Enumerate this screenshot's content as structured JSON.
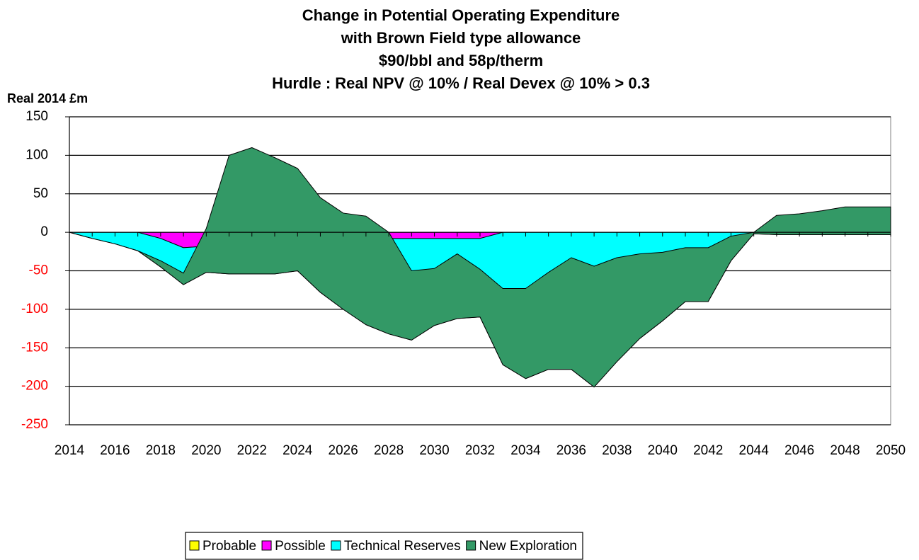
{
  "chart_data": {
    "type": "stacked_area",
    "title": [
      "Change in Potential Operating Expenditure",
      "with Brown Field type allowance",
      "$90/bbl and 58p/therm",
      "Hurdle : Real NPV @ 10% / Real Devex @ 10% > 0.3"
    ],
    "y_label": "Real 2014 £m",
    "x": [
      2014,
      2015,
      2016,
      2017,
      2018,
      2019,
      2020,
      2021,
      2022,
      2023,
      2024,
      2025,
      2026,
      2027,
      2028,
      2029,
      2030,
      2031,
      2032,
      2033,
      2034,
      2035,
      2036,
      2037,
      2038,
      2039,
      2040,
      2041,
      2042,
      2043,
      2044,
      2045,
      2046,
      2047,
      2048,
      2049,
      2050
    ],
    "xlim": [
      2014,
      2050
    ],
    "xticks": [
      2014,
      2016,
      2018,
      2020,
      2022,
      2024,
      2026,
      2028,
      2030,
      2032,
      2034,
      2036,
      2038,
      2040,
      2042,
      2044,
      2046,
      2048,
      2050
    ],
    "ylim": [
      -250,
      150
    ],
    "yticks": [
      150,
      100,
      50,
      0,
      -50,
      -100,
      -150,
      -200,
      -250
    ],
    "negative_tick_color": "#ff0000",
    "grid": true,
    "legend": "bottom",
    "series": [
      {
        "name": "Probable",
        "color": "#ffff00",
        "values": [
          0,
          0,
          0,
          0,
          0,
          0,
          0,
          0,
          0,
          0,
          0,
          0,
          0,
          0,
          0,
          0,
          0,
          0,
          0,
          0,
          0,
          0,
          0,
          0,
          0,
          0,
          0,
          0,
          0,
          0,
          0,
          0,
          0,
          0,
          0,
          0,
          0
        ]
      },
      {
        "name": "Possible",
        "color": "#ff00ff",
        "values": [
          0,
          0,
          0,
          0,
          -8,
          -20,
          -18,
          -8,
          -8,
          -8,
          -8,
          -8,
          -8,
          -8,
          -8,
          -8,
          -8,
          -8,
          -8,
          0,
          0,
          0,
          0,
          0,
          0,
          0,
          0,
          0,
          0,
          0,
          0,
          0,
          0,
          0,
          0,
          0,
          0
        ]
      },
      {
        "name": "Technical Reserves",
        "color": "#00ffff",
        "values": [
          0,
          -8,
          -15,
          -24,
          -37,
          -48,
          -34,
          -46,
          -46,
          -46,
          -42,
          -70,
          -92,
          -112,
          -124,
          -132,
          -113,
          -104,
          -102,
          -172,
          -190,
          -178,
          -178,
          -201,
          -168,
          -138,
          -115,
          -90,
          -90,
          -37,
          -2,
          -3,
          -3,
          -3,
          -3,
          -3,
          -3
        ]
      },
      {
        "name": "New Exploration",
        "color": "#339966",
        "values": [
          0,
          0,
          0,
          0,
          8,
          15,
          57,
          154,
          164,
          151,
          133,
          123,
          125,
          141,
          132,
          90,
          74,
          84,
          62,
          99,
          117,
          126,
          145,
          157,
          135,
          110,
          89,
          70,
          70,
          32,
          2,
          25,
          27,
          31,
          36,
          36,
          36
        ]
      }
    ]
  }
}
